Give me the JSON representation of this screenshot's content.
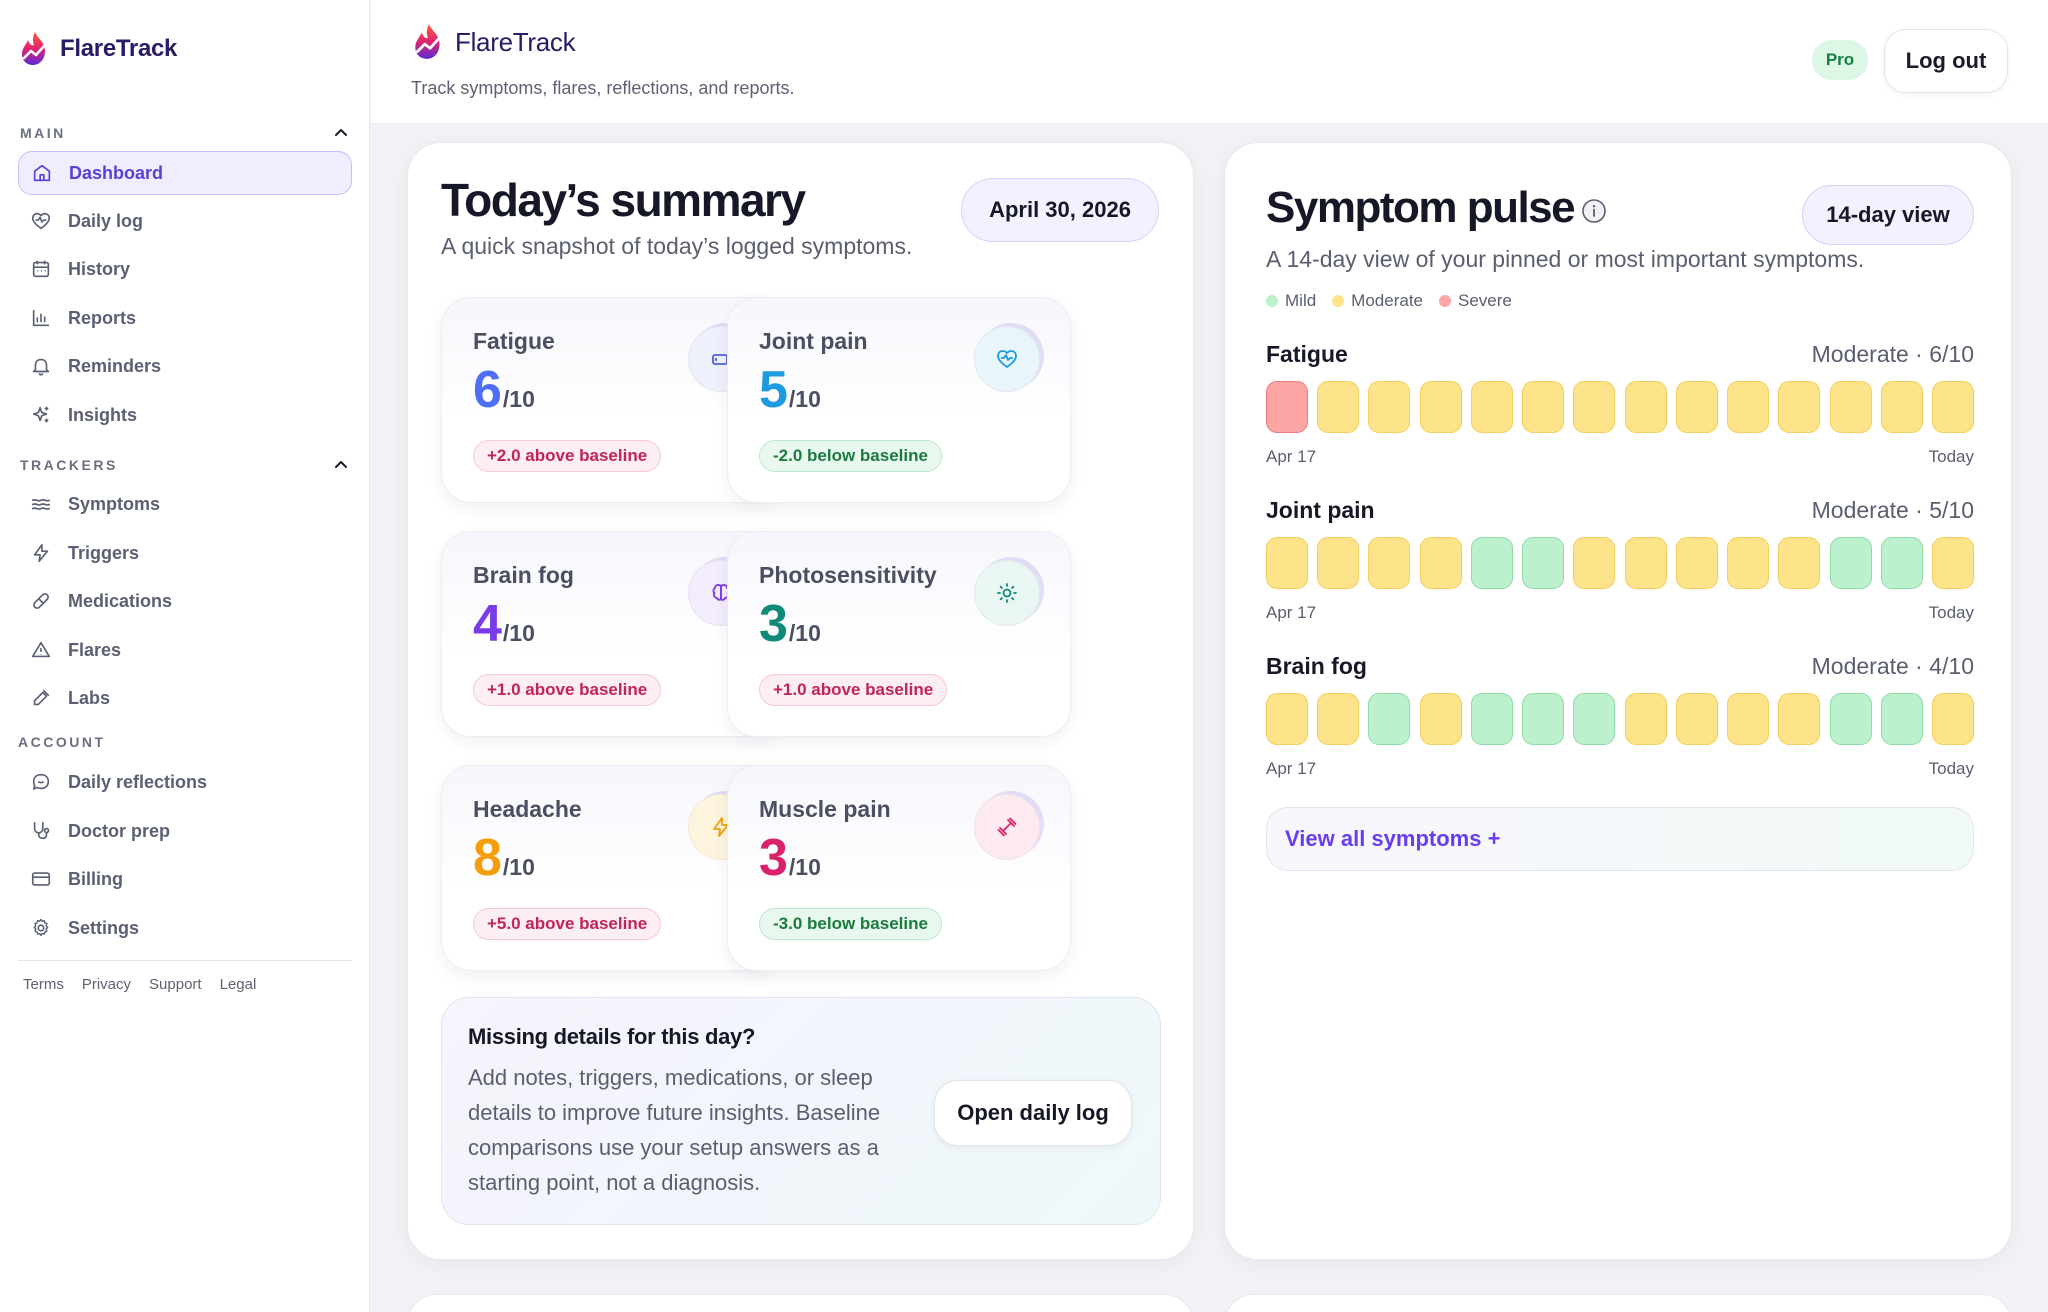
{
  "app": {
    "name": "FlareTrack",
    "tagline": "Track symptoms, flares, reflections, and reports."
  },
  "colors": {
    "accent": "#5b3fd9",
    "mild": "#bdf0cc",
    "moderate": "#fde48a",
    "severe": "#fca5a5"
  },
  "sidebar": {
    "sections": [
      {
        "label": "MAIN",
        "items": [
          {
            "label": "Dashboard",
            "icon": "home-icon",
            "active": true
          },
          {
            "label": "Daily log",
            "icon": "heart-pulse-icon"
          },
          {
            "label": "History",
            "icon": "calendar-icon"
          },
          {
            "label": "Reports",
            "icon": "bar-chart-icon"
          },
          {
            "label": "Reminders",
            "icon": "bell-icon"
          },
          {
            "label": "Insights",
            "icon": "sparkles-icon"
          }
        ]
      },
      {
        "label": "TRACKERS",
        "items": [
          {
            "label": "Symptoms",
            "icon": "waves-icon"
          },
          {
            "label": "Triggers",
            "icon": "bolt-icon"
          },
          {
            "label": "Medications",
            "icon": "pill-icon"
          },
          {
            "label": "Flares",
            "icon": "warning-triangle-icon"
          },
          {
            "label": "Labs",
            "icon": "pipette-icon"
          }
        ]
      },
      {
        "label": "ACCOUNT",
        "items": [
          {
            "label": "Daily reflections",
            "icon": "chat-bubble-icon"
          },
          {
            "label": "Doctor prep",
            "icon": "stethoscope-icon"
          },
          {
            "label": "Billing",
            "icon": "credit-card-icon"
          },
          {
            "label": "Settings",
            "icon": "gear-icon"
          }
        ]
      }
    ],
    "footer_links": [
      "Terms",
      "Privacy",
      "Support",
      "Legal"
    ]
  },
  "header": {
    "badge": "Pro",
    "logout_label": "Log out"
  },
  "summary": {
    "title": "Today’s summary",
    "subtitle": "A quick snapshot of today’s logged symptoms.",
    "date": "April 30, 2026",
    "cards": [
      {
        "name": "Fatigue",
        "score": "6",
        "max": "/10",
        "delta": "+2.0 above baseline",
        "direction": "up",
        "color": "#4f6ef7",
        "icon": "battery-icon",
        "icon_bg": "#eef0fc",
        "icon_color": "#4f5fd9"
      },
      {
        "name": "Joint pain",
        "score": "5",
        "max": "/10",
        "delta": "-2.0 below baseline",
        "direction": "down",
        "color": "#1e9be0",
        "icon": "heart-pulse-icon",
        "icon_bg": "#e8f5fb",
        "icon_color": "#1e9be0"
      },
      {
        "name": "Brain fog",
        "score": "4",
        "max": "/10",
        "delta": "+1.0 above baseline",
        "direction": "up",
        "color": "#7a3ce8",
        "icon": "brain-icon",
        "icon_bg": "#f2ecfd",
        "icon_color": "#7a3ce8"
      },
      {
        "name": "Photosensitivity",
        "score": "3",
        "max": "/10",
        "delta": "+1.0 above baseline",
        "direction": "up",
        "color": "#0f8a78",
        "icon": "sun-icon",
        "icon_bg": "#e9f6f3",
        "icon_color": "#0f8a78"
      },
      {
        "name": "Headache",
        "score": "8",
        "max": "/10",
        "delta": "+5.0 above baseline",
        "direction": "up",
        "color": "#f59e0b",
        "icon": "bolt-icon",
        "icon_bg": "#fdf4de",
        "icon_color": "#f59e0b"
      },
      {
        "name": "Muscle pain",
        "score": "3",
        "max": "/10",
        "delta": "-3.0 below baseline",
        "direction": "down",
        "color": "#d9226b",
        "icon": "dumbbell-icon",
        "icon_bg": "#fdeaf1",
        "icon_color": "#d9226b"
      }
    ],
    "missing": {
      "title": "Missing details for this day?",
      "body": "Add notes, triggers, medications, or sleep details to improve future insights. Baseline comparisons use your setup answers as a starting point, not a diagnosis.",
      "button": "Open daily log"
    }
  },
  "pulse": {
    "title": "Symptom pulse",
    "subtitle": "A 14-day view of your pinned or most important symptoms.",
    "view_button": "14-day view",
    "legend": [
      {
        "label": "Mild",
        "color": "#bdf0cc"
      },
      {
        "label": "Moderate",
        "color": "#fde48a"
      },
      {
        "label": "Severe",
        "color": "#fca5a5"
      }
    ],
    "start_label": "Apr 17",
    "end_label": "Today",
    "rows": [
      {
        "name": "Fatigue",
        "summary": "Moderate · 6/10",
        "days": [
          "severe",
          "moderate",
          "moderate",
          "moderate",
          "moderate",
          "moderate",
          "moderate",
          "moderate",
          "moderate",
          "moderate",
          "moderate",
          "moderate",
          "moderate",
          "moderate"
        ]
      },
      {
        "name": "Joint pain",
        "summary": "Moderate · 5/10",
        "days": [
          "moderate",
          "moderate",
          "moderate",
          "moderate",
          "mild",
          "mild",
          "moderate",
          "moderate",
          "moderate",
          "moderate",
          "moderate",
          "mild",
          "mild",
          "moderate"
        ]
      },
      {
        "name": "Brain fog",
        "summary": "Moderate · 4/10",
        "days": [
          "moderate",
          "moderate",
          "mild",
          "moderate",
          "mild",
          "mild",
          "mild",
          "moderate",
          "moderate",
          "moderate",
          "moderate",
          "mild",
          "mild",
          "moderate"
        ]
      }
    ],
    "view_all": "View all symptoms +"
  }
}
